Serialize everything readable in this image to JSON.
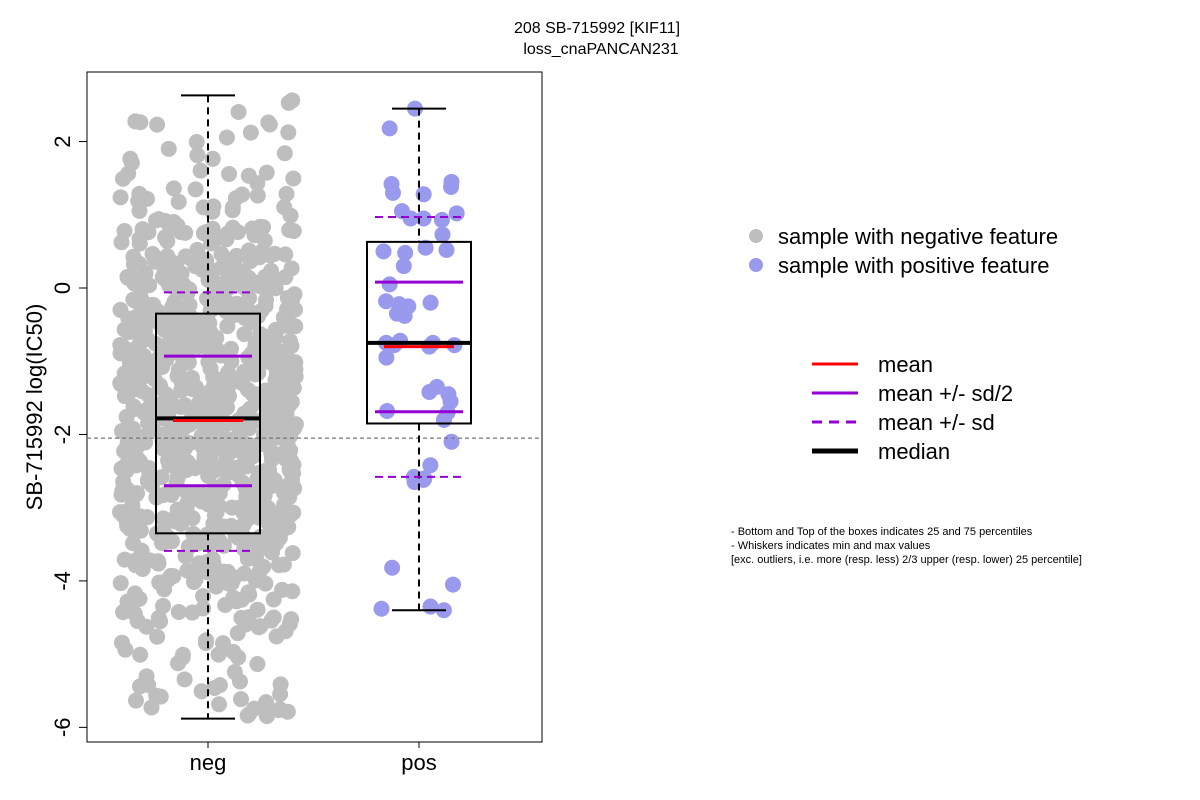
{
  "chart_data": {
    "type": "boxplot",
    "title": "208 SB-715992 [KIF11]",
    "subtitle": "loss_cnaPANCAN231",
    "ylabel": "SB-715992 log(IC50)",
    "xlabel": "",
    "ylim": [
      -6.2,
      2.95
    ],
    "yticks": [
      -6,
      -4,
      -2,
      0,
      2
    ],
    "reference_line_y": -2.05,
    "groups": [
      {
        "name": "neg",
        "color": "#bebebe",
        "min": -5.88,
        "q1": -3.35,
        "median": -1.78,
        "q3": -0.35,
        "max": 2.63,
        "mean": -1.81,
        "mean_minus_half_sd": -2.7,
        "mean_plus_half_sd": -0.93,
        "mean_minus_sd": -3.59,
        "mean_plus_sd": -0.06,
        "n_points": 820
      },
      {
        "name": "pos",
        "color": "#9999ee",
        "min": -4.4,
        "q1": -1.85,
        "median": -0.75,
        "q3": 0.63,
        "max": 2.45,
        "mean": -0.8,
        "mean_minus_half_sd": -1.69,
        "mean_plus_half_sd": 0.08,
        "mean_minus_sd": -2.58,
        "mean_plus_sd": 0.97,
        "points": [
          2.45,
          2.18,
          1.45,
          1.42,
          1.38,
          1.3,
          1.28,
          1.05,
          1.02,
          0.95,
          0.95,
          0.93,
          0.73,
          0.55,
          0.52,
          0.5,
          0.48,
          0.3,
          0.05,
          -0.18,
          -0.2,
          -0.22,
          -0.25,
          -0.35,
          -0.38,
          -0.72,
          -0.75,
          -0.75,
          -0.78,
          -0.78,
          -0.8,
          -0.95,
          -1.35,
          -1.42,
          -1.45,
          -1.55,
          -1.68,
          -1.7,
          -1.8,
          -2.1,
          -2.42,
          -2.58,
          -2.6,
          -2.62,
          -2.65,
          -3.82,
          -4.05,
          -4.35,
          -4.38,
          -4.4
        ]
      }
    ],
    "legend_points": [
      {
        "label": "sample with negative feature",
        "color": "#bebebe"
      },
      {
        "label": "sample with positive feature",
        "color": "#9999ee"
      }
    ],
    "legend_lines": [
      {
        "label": "mean",
        "color": "#ff0000",
        "style": "solid"
      },
      {
        "label": "mean +/- sd/2",
        "color": "#9400d3",
        "style": "solid"
      },
      {
        "label": "mean +/- sd",
        "color": "#9400d3",
        "style": "dashed"
      },
      {
        "label": "median",
        "color": "#000000",
        "style": "thick"
      }
    ]
  },
  "notes": [
    "- Bottom and Top of the boxes indicates 25 and 75 percentiles",
    "- Whiskers indicates min and max values",
    "[exc. outliers, i.e. more (resp. less) 2/3 upper (resp. lower) 25 percentile]"
  ]
}
